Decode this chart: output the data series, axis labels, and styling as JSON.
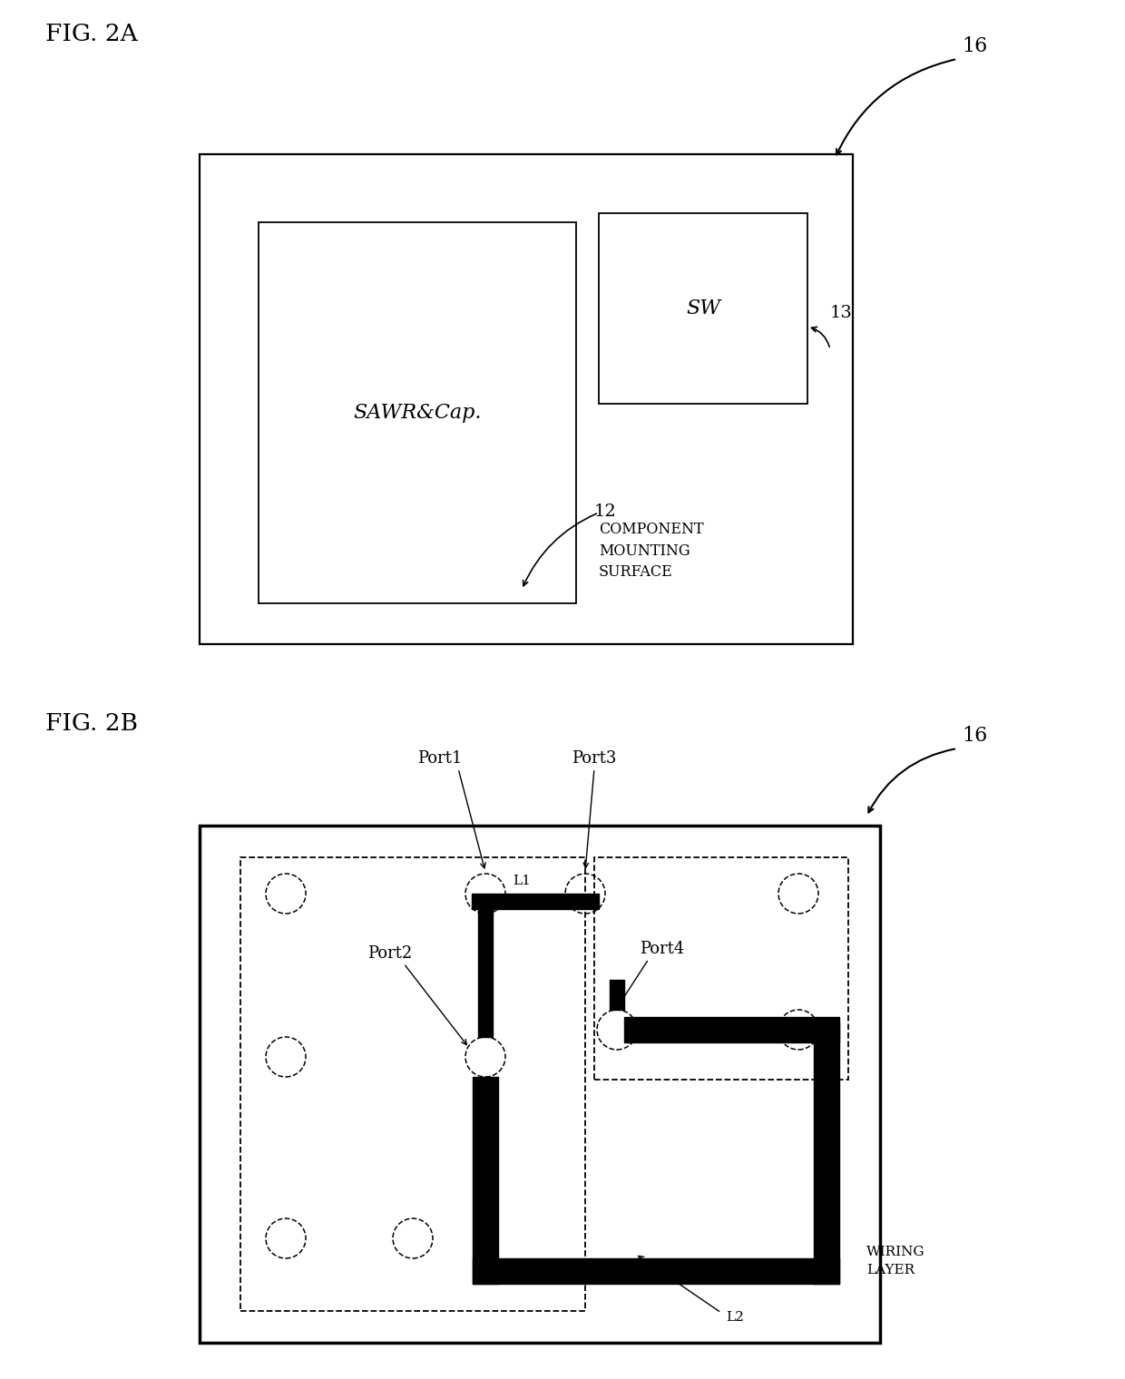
{
  "fig_label_A": "FIG. 2A",
  "fig_label_B": "FIG. 2B",
  "label_16": "16",
  "label_13": "13",
  "label_12": "12",
  "label_L1": "L1",
  "label_L2": "L2",
  "text_component": "COMPONENT\nMOUNTING\nSURFACE",
  "text_wiring": "WIRING\nLAYER",
  "text_sawr": "SAWR&Cap.",
  "text_sw": "SW",
  "text_port1": "Port1",
  "text_port2": "Port2",
  "text_port3": "Port3",
  "text_port4": "Port4",
  "bg_color": "#ffffff",
  "line_color": "#000000"
}
